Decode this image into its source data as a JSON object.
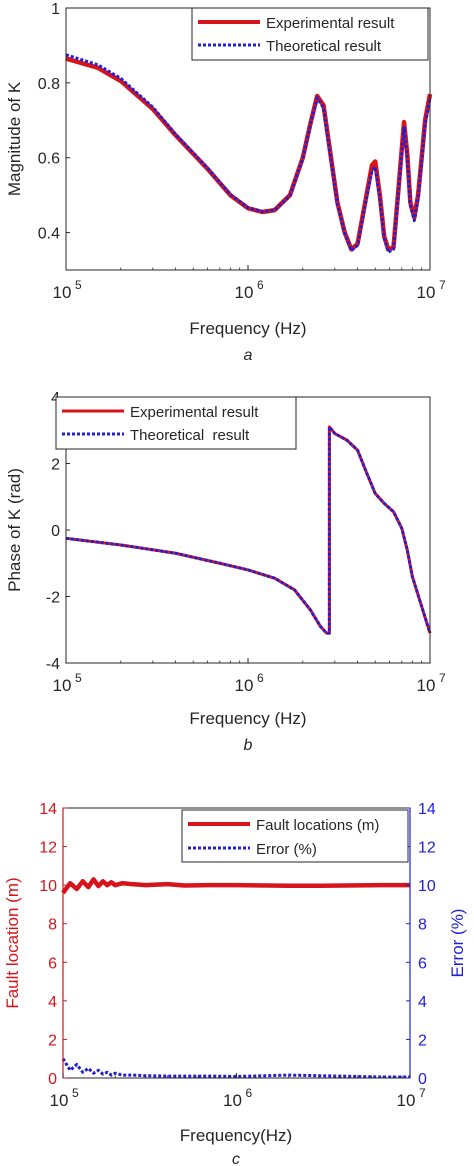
{
  "chart_data": [
    {
      "type": "line",
      "panel": "a",
      "xlabel": "Frequency (Hz)",
      "ylabel": "Magnitude of K",
      "caption": "a",
      "xscale": "log",
      "xlim": [
        100000,
        10000000
      ],
      "ylim": [
        0.3,
        1.0
      ],
      "xtick_labels": [
        {
          "value": 100000,
          "base": "10",
          "exp": "5"
        },
        {
          "value": 1000000,
          "base": "10",
          "exp": "6"
        },
        {
          "value": 10000000,
          "base": "10",
          "exp": "7"
        }
      ],
      "yticks": [
        0.4,
        0.6,
        0.8,
        1.0
      ],
      "ytick_labels": [
        "0.4",
        "0.6",
        "0.8",
        "1"
      ],
      "legend_position": "top-right",
      "grid": false,
      "series": [
        {
          "name": "Experimental result",
          "color": "#d7141c",
          "style": "solid",
          "x": [
            100000,
            150000,
            200000,
            300000,
            400000,
            600000,
            800000,
            1000000,
            1200000,
            1400000,
            1700000,
            2000000,
            2200000,
            2400000,
            2600000,
            2800000,
            3100000,
            3400000,
            3700000,
            4000000,
            4400000,
            4800000,
            5000000,
            5300000,
            5600000,
            5900000,
            6300000,
            6800000,
            7200000,
            7500000,
            7800000,
            8200000,
            8600000,
            9000000,
            9400000,
            10000000
          ],
          "y": [
            0.865,
            0.84,
            0.805,
            0.73,
            0.66,
            0.57,
            0.5,
            0.465,
            0.455,
            0.46,
            0.5,
            0.6,
            0.69,
            0.765,
            0.74,
            0.63,
            0.48,
            0.4,
            0.355,
            0.37,
            0.48,
            0.58,
            0.59,
            0.5,
            0.39,
            0.355,
            0.36,
            0.55,
            0.695,
            0.61,
            0.48,
            0.44,
            0.5,
            0.6,
            0.7,
            0.77
          ]
        },
        {
          "name": "Theoretical result",
          "color": "#1f1fd6",
          "style": "dotted",
          "x": [
            100000,
            150000,
            200000,
            300000,
            400000,
            600000,
            800000,
            1000000,
            1200000,
            1400000,
            1700000,
            2000000,
            2200000,
            2400000,
            2600000,
            2800000,
            3100000,
            3400000,
            3700000,
            4000000,
            4400000,
            4800000,
            5000000,
            5300000,
            5600000,
            5900000,
            6300000,
            6800000,
            7200000,
            7500000,
            7800000,
            8200000,
            8600000,
            9000000,
            9400000,
            10000000
          ],
          "y": [
            0.875,
            0.848,
            0.812,
            0.735,
            0.663,
            0.572,
            0.502,
            0.466,
            0.456,
            0.46,
            0.498,
            0.597,
            0.688,
            0.76,
            0.733,
            0.625,
            0.477,
            0.398,
            0.352,
            0.366,
            0.472,
            0.565,
            0.575,
            0.49,
            0.385,
            0.348,
            0.355,
            0.54,
            0.68,
            0.6,
            0.472,
            0.432,
            0.49,
            0.59,
            0.69,
            0.76
          ]
        }
      ]
    },
    {
      "type": "line",
      "panel": "b",
      "xlabel": "Frequency (Hz)",
      "ylabel": "Phase of K (rad)",
      "caption": "b",
      "xscale": "log",
      "xlim": [
        100000,
        10000000
      ],
      "ylim": [
        -4,
        4
      ],
      "xtick_labels": [
        {
          "value": 100000,
          "base": "10",
          "exp": "5"
        },
        {
          "value": 1000000,
          "base": "10",
          "exp": "6"
        },
        {
          "value": 10000000,
          "base": "10",
          "exp": "7"
        }
      ],
      "yticks": [
        -4,
        -2,
        0,
        2,
        4
      ],
      "ytick_labels": [
        "-4",
        "-2",
        "0",
        "2",
        "4"
      ],
      "legend_position": "top-left",
      "grid": false,
      "series": [
        {
          "name": "Experimental result",
          "color": "#d7141c",
          "style": "solid",
          "x": [
            100000,
            200000,
            400000,
            700000,
            1000000,
            1400000,
            1800000,
            2200000,
            2500000,
            2700000,
            2800000,
            2800001,
            3000000,
            3500000,
            4000000,
            4500000,
            5000000,
            5600000,
            6300000,
            7000000,
            7500000,
            8000000,
            9000000,
            10000000
          ],
          "y": [
            -0.25,
            -0.45,
            -0.7,
            -1.0,
            -1.2,
            -1.45,
            -1.8,
            -2.4,
            -2.9,
            -3.1,
            -3.1,
            3.1,
            2.9,
            2.7,
            2.4,
            1.7,
            1.1,
            0.8,
            0.55,
            0.05,
            -0.6,
            -1.4,
            -2.3,
            -3.1
          ]
        },
        {
          "name": "Theoretical  result",
          "color": "#1f1fd6",
          "style": "dotted",
          "x": [
            100000,
            200000,
            400000,
            700000,
            1000000,
            1400000,
            1800000,
            2200000,
            2500000,
            2700000,
            2800000,
            2800001,
            3000000,
            3500000,
            4000000,
            4500000,
            5000000,
            5600000,
            6300000,
            7000000,
            7500000,
            8000000,
            9000000,
            10000000
          ],
          "y": [
            -0.25,
            -0.45,
            -0.7,
            -1.0,
            -1.2,
            -1.45,
            -1.8,
            -2.4,
            -2.9,
            -3.1,
            -3.1,
            3.1,
            2.9,
            2.7,
            2.4,
            1.7,
            1.1,
            0.8,
            0.55,
            0.05,
            -0.6,
            -1.4,
            -2.3,
            -3.1
          ]
        }
      ]
    },
    {
      "type": "line",
      "panel": "c",
      "xlabel": "Frequency(Hz)",
      "ylabel": "Fault location (m)",
      "ylabel_right": "Error (%)",
      "caption": "c",
      "xscale": "log",
      "xlim": [
        100000,
        10000000
      ],
      "ylim": [
        0,
        14
      ],
      "ylim_right": [
        0,
        14
      ],
      "xtick_labels": [
        {
          "value": 100000,
          "base": "10",
          "exp": "5"
        },
        {
          "value": 1000000,
          "base": "10",
          "exp": "6"
        },
        {
          "value": 10000000,
          "base": "10",
          "exp": "7"
        }
      ],
      "yticks": [
        0,
        2,
        4,
        6,
        8,
        10,
        12,
        14
      ],
      "ytick_labels": [
        "0",
        "2",
        "4",
        "6",
        "8",
        "10",
        "12",
        "14"
      ],
      "legend_position": "top-right",
      "grid": false,
      "left_axis_color": "#d7141c",
      "right_axis_color": "#1f1fd6",
      "series": [
        {
          "name": "Fault locations (m)",
          "color": "#d7141c",
          "style": "solid",
          "axis": "left",
          "x": [
            100000,
            110000,
            120000,
            130000,
            140000,
            150000,
            160000,
            170000,
            180000,
            190000,
            200000,
            220000,
            250000,
            300000,
            400000,
            500000,
            700000,
            1000000,
            1500000,
            2000000,
            3000000,
            5000000,
            7000000,
            10000000
          ],
          "y": [
            9.6,
            10.1,
            9.8,
            10.2,
            9.9,
            10.3,
            9.95,
            10.2,
            10.0,
            10.15,
            10.0,
            10.1,
            10.05,
            10.0,
            10.05,
            9.98,
            10.0,
            10.0,
            9.98,
            9.97,
            9.97,
            9.99,
            10.0,
            10.0
          ]
        },
        {
          "name": "Error (%)",
          "color": "#1f1fd6",
          "style": "dotted",
          "axis": "right",
          "x": [
            100000,
            110000,
            120000,
            130000,
            140000,
            150000,
            160000,
            170000,
            180000,
            190000,
            200000,
            220000,
            250000,
            300000,
            400000,
            500000,
            700000,
            1000000,
            1500000,
            2000000,
            3000000,
            5000000,
            7000000,
            10000000
          ],
          "y": [
            1.0,
            0.4,
            0.7,
            0.3,
            0.5,
            0.25,
            0.4,
            0.2,
            0.3,
            0.15,
            0.25,
            0.15,
            0.15,
            0.12,
            0.1,
            0.1,
            0.1,
            0.08,
            0.12,
            0.15,
            0.12,
            0.08,
            0.05,
            0.05
          ]
        }
      ]
    }
  ]
}
